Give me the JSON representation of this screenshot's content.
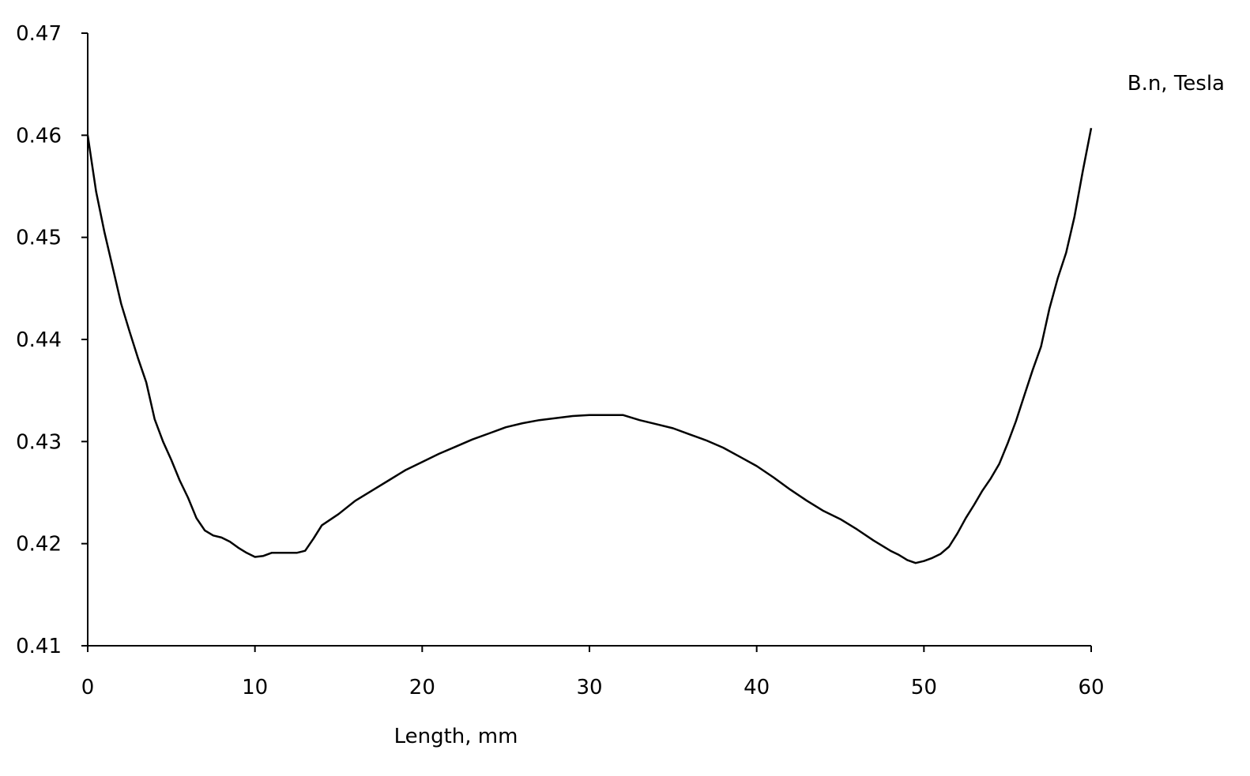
{
  "chart_data": {
    "type": "line",
    "title": "",
    "xlabel": "Length, mm",
    "ylabel": "B.n, Tesla",
    "xlim": [
      0,
      60
    ],
    "ylim": [
      0.41,
      0.47
    ],
    "grid": false,
    "legend": "none",
    "line_color": "#000000",
    "x_ticks": [
      0,
      10,
      20,
      30,
      40,
      50,
      60
    ],
    "x_tick_labels": [
      "0",
      "10",
      "20",
      "30",
      "40",
      "50",
      "60"
    ],
    "y_ticks": [
      0.41,
      0.42,
      0.43,
      0.44,
      0.45,
      0.46,
      0.47
    ],
    "y_tick_labels": [
      "0.41",
      "0.42",
      "0.43",
      "0.44",
      "0.45",
      "0.46",
      "0.47"
    ],
    "series": [
      {
        "x": [
          0,
          0.5,
          1.0,
          1.5,
          2.0,
          2.5,
          3.0,
          3.5,
          4.0,
          4.5,
          5.0,
          5.5,
          6.0,
          6.5,
          7.0,
          7.5,
          8.0,
          8.5,
          9.0,
          9.5,
          10.0,
          10.5,
          11.0,
          11.5,
          12.0,
          12.5,
          13.0,
          13.5,
          14.0,
          15.0,
          16.0,
          17.0,
          18.0,
          19.0,
          20.0,
          21.0,
          22.0,
          23.0,
          24.0,
          25.0,
          26.0,
          27.0,
          28.0,
          29.0,
          30.0,
          31.0,
          32.0,
          33.0,
          34.0,
          35.0,
          36.0,
          37.0,
          38.0,
          39.0,
          40.0,
          41.0,
          42.0,
          43.0,
          44.0,
          45.0,
          46.0,
          47.0,
          48.0,
          48.5,
          49.0,
          49.5,
          50.0,
          50.5,
          51.0,
          51.5,
          52.0,
          52.5,
          53.0,
          53.5,
          54.0,
          54.5,
          55.0,
          55.5,
          56.0,
          56.5,
          57.0,
          57.5,
          58.0,
          58.5,
          59.0,
          59.5,
          60.0
        ],
        "y": [
          0.46,
          0.4545,
          0.4505,
          0.447,
          0.4435,
          0.4408,
          0.4382,
          0.4358,
          0.4322,
          0.43,
          0.4282,
          0.4262,
          0.4245,
          0.4225,
          0.4213,
          0.4208,
          0.4206,
          0.4202,
          0.4196,
          0.4191,
          0.4187,
          0.4188,
          0.4191,
          0.4191,
          0.4191,
          0.4191,
          0.4193,
          0.4205,
          0.4218,
          0.4229,
          0.4242,
          0.4252,
          0.4262,
          0.4272,
          0.428,
          0.4288,
          0.4295,
          0.4302,
          0.4308,
          0.4314,
          0.4318,
          0.4321,
          0.4323,
          0.4325,
          0.4326,
          0.4326,
          0.4326,
          0.4321,
          0.4317,
          0.4313,
          0.4307,
          0.4301,
          0.4294,
          0.4285,
          0.4276,
          0.4265,
          0.4253,
          0.4242,
          0.4232,
          0.4224,
          0.4214,
          0.4203,
          0.4193,
          0.4189,
          0.4184,
          0.4181,
          0.4183,
          0.4186,
          0.419,
          0.4197,
          0.421,
          0.4225,
          0.4238,
          0.4252,
          0.4264,
          0.4278,
          0.4298,
          0.432,
          0.4345,
          0.437,
          0.4393,
          0.443,
          0.446,
          0.4485,
          0.452,
          0.4565,
          0.4607
        ]
      }
    ]
  }
}
